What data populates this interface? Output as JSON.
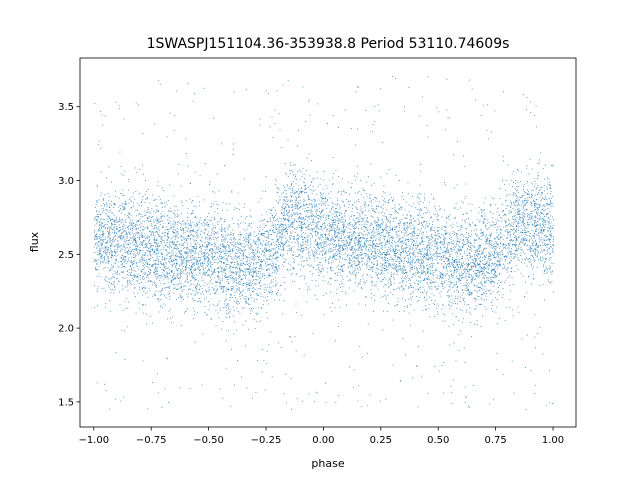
{
  "chart_data": {
    "type": "scatter",
    "title": "1SWASPJ151104.36-353938.8 Period 53110.74609s",
    "xlabel": "phase",
    "ylabel": "flux",
    "xlim": [
      -1.06,
      1.1
    ],
    "ylim": [
      1.33,
      3.83
    ],
    "x_ticks": [
      {
        "value": -1.0,
        "label": "−1.00"
      },
      {
        "value": -0.75,
        "label": "−0.75"
      },
      {
        "value": -0.5,
        "label": "−0.50"
      },
      {
        "value": -0.25,
        "label": "−0.25"
      },
      {
        "value": 0.0,
        "label": "0.00"
      },
      {
        "value": 0.25,
        "label": "0.25"
      },
      {
        "value": 0.5,
        "label": "0.50"
      },
      {
        "value": 0.75,
        "label": "0.75"
      },
      {
        "value": 1.0,
        "label": "1.00"
      }
    ],
    "y_ticks": [
      {
        "value": 1.5,
        "label": "1.5"
      },
      {
        "value": 2.0,
        "label": "2.0"
      },
      {
        "value": 2.5,
        "label": "2.5"
      },
      {
        "value": 3.0,
        "label": "3.0"
      },
      {
        "value": 3.5,
        "label": "3.5"
      }
    ],
    "grid": false,
    "point_color": "#1f77b4",
    "x_range": [
      -1.0,
      1.0
    ],
    "phase_profile": [
      {
        "phase": -1.0,
        "flux": 2.62
      },
      {
        "phase": -0.9,
        "flux": 2.58
      },
      {
        "phase": -0.75,
        "flux": 2.54
      },
      {
        "phase": -0.5,
        "flux": 2.47
      },
      {
        "phase": -0.35,
        "flux": 2.42
      },
      {
        "phase": -0.25,
        "flux": 2.48
      },
      {
        "phase": -0.15,
        "flux": 2.73
      },
      {
        "phase": -0.05,
        "flux": 2.7
      },
      {
        "phase": 0.0,
        "flux": 2.64
      },
      {
        "phase": 0.25,
        "flux": 2.56
      },
      {
        "phase": 0.5,
        "flux": 2.49
      },
      {
        "phase": 0.65,
        "flux": 2.42
      },
      {
        "phase": 0.75,
        "flux": 2.5
      },
      {
        "phase": 0.85,
        "flux": 2.72
      },
      {
        "phase": 0.95,
        "flux": 2.7
      },
      {
        "phase": 1.0,
        "flux": 2.66
      }
    ],
    "scatter_core": 0.17,
    "outlier_fraction": 0.06,
    "outlier_range": [
      1.45,
      3.72
    ]
  }
}
